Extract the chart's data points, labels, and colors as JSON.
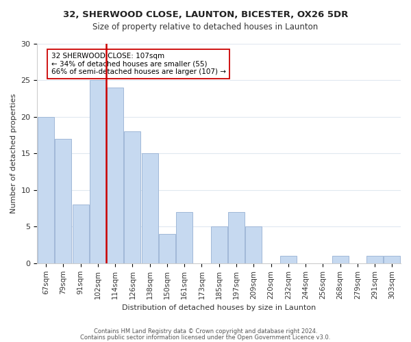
{
  "title1": "32, SHERWOOD CLOSE, LAUNTON, BICESTER, OX26 5DR",
  "title2": "Size of property relative to detached houses in Launton",
  "xlabel": "Distribution of detached houses by size in Launton",
  "ylabel": "Number of detached properties",
  "bar_labels": [
    "67sqm",
    "79sqm",
    "91sqm",
    "102sqm",
    "114sqm",
    "126sqm",
    "138sqm",
    "150sqm",
    "161sqm",
    "173sqm",
    "185sqm",
    "197sqm",
    "209sqm",
    "220sqm",
    "232sqm",
    "244sqm",
    "256sqm",
    "268sqm",
    "279sqm",
    "291sqm",
    "303sqm"
  ],
  "bar_values": [
    20,
    17,
    8,
    25,
    24,
    18,
    15,
    4,
    7,
    0,
    5,
    7,
    5,
    0,
    1,
    0,
    0,
    1,
    0,
    1,
    1
  ],
  "bar_color": "#c6d9f0",
  "bar_edge_color": "#a0b8d8",
  "vline_x": 3.5,
  "vline_color": "#cc0000",
  "annotation_text": "32 SHERWOOD CLOSE: 107sqm\n← 34% of detached houses are smaller (55)\n66% of semi-detached houses are larger (107) →",
  "annotation_box_color": "#ffffff",
  "annotation_box_edge_color": "#cc0000",
  "ylim": [
    0,
    30
  ],
  "yticks": [
    0,
    5,
    10,
    15,
    20,
    25,
    30
  ],
  "footer1": "Contains HM Land Registry data © Crown copyright and database right 2024.",
  "footer2": "Contains public sector information licensed under the Open Government Licence v3.0.",
  "background_color": "#ffffff",
  "grid_color": "#e0e8f0"
}
